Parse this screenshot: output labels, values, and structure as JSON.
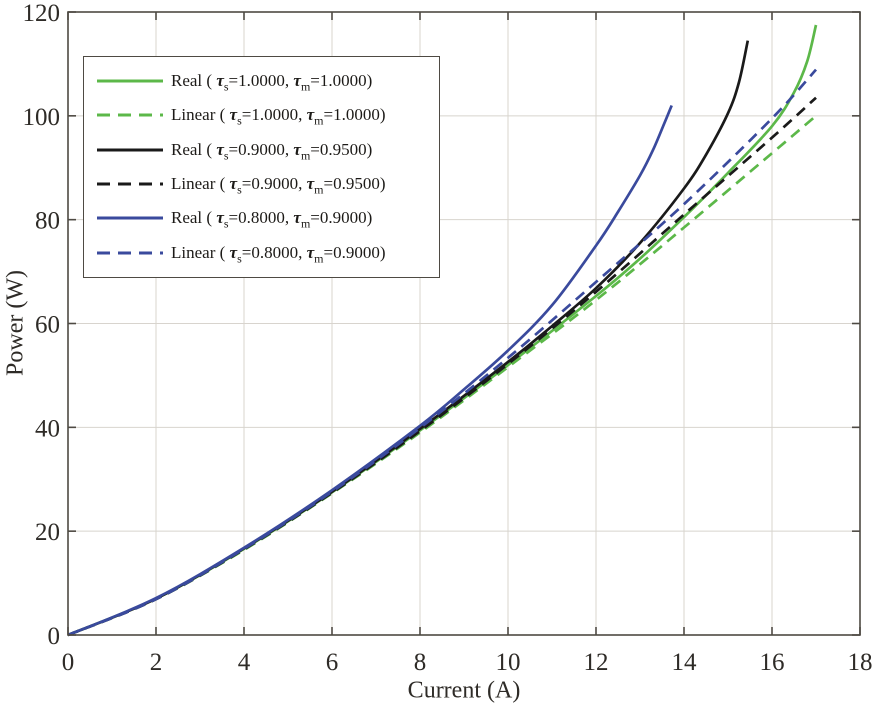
{
  "chart_data": {
    "type": "line",
    "title": "",
    "xlabel": "Current (A)",
    "ylabel": "Power (W)",
    "xlim": [
      0,
      18
    ],
    "ylim": [
      0,
      120
    ],
    "xticks": [
      0,
      2,
      4,
      6,
      8,
      10,
      12,
      14,
      16,
      18
    ],
    "yticks": [
      0,
      20,
      40,
      60,
      80,
      100,
      120
    ],
    "grid": true,
    "legend_position": "top-left",
    "colors": {
      "green": "#5cb849",
      "black": "#1a1a1a",
      "blue": "#3a4a9d"
    },
    "frame_color": "#4e4a43",
    "grid_color": "#d8d4ce",
    "tick_label_color": "#2e2b27",
    "symbols": {
      "tau": "τ",
      "sub_s": "s",
      "sub_m": "m"
    },
    "series": [
      {
        "id": "real-ts-1.0000-tm-1.0000",
        "name": "Real ( τs=1.0000, τm=1.0000)",
        "legend": {
          "prefix": "Real ( ",
          "s_val": "=1.0000, ",
          "m_val": "=1.0000)"
        },
        "color": "green",
        "style": "solid",
        "points": [
          [
            0,
            0
          ],
          [
            2,
            7
          ],
          [
            4,
            16.6
          ],
          [
            6,
            27.5
          ],
          [
            8,
            39.4
          ],
          [
            10,
            52
          ],
          [
            12,
            65.3
          ],
          [
            13,
            72.5
          ],
          [
            14,
            80.5
          ],
          [
            15,
            89
          ],
          [
            16,
            98
          ],
          [
            16.5,
            104.5
          ],
          [
            16.8,
            110.5
          ],
          [
            17,
            117.5
          ]
        ]
      },
      {
        "id": "linear-ts-1.0000-tm-1.0000",
        "name": "Linear ( τs=1.0000, τm=1.0000)",
        "legend": {
          "prefix": "Linear ( ",
          "s_val": "=1.0000, ",
          "m_val": "=1.0000)"
        },
        "color": "green",
        "style": "dashed",
        "points": [
          [
            0,
            0
          ],
          [
            2,
            6.9
          ],
          [
            4,
            16.4
          ],
          [
            6,
            27.3
          ],
          [
            8,
            39.0
          ],
          [
            10,
            51.6
          ],
          [
            12,
            64.5
          ],
          [
            14,
            78.5
          ],
          [
            16,
            92.8
          ],
          [
            17,
            100
          ]
        ]
      },
      {
        "id": "real-ts-0.9000-tm-0.9500",
        "name": "Real ( τs=0.9000, τm=0.9500)",
        "legend": {
          "prefix": "Real ( ",
          "s_val": "=0.9000, ",
          "m_val": "=0.9500)"
        },
        "color": "black",
        "style": "solid",
        "points": [
          [
            0,
            0
          ],
          [
            2,
            7
          ],
          [
            4,
            16.7
          ],
          [
            6,
            27.6
          ],
          [
            8,
            39.7
          ],
          [
            10,
            52.6
          ],
          [
            11,
            59.5
          ],
          [
            12,
            66.8
          ],
          [
            13,
            75.5
          ],
          [
            14,
            86
          ],
          [
            14.5,
            92.5
          ],
          [
            15,
            100.5
          ],
          [
            15.25,
            106.5
          ],
          [
            15.45,
            114.5
          ]
        ]
      },
      {
        "id": "linear-ts-0.9000-tm-0.9500",
        "name": "Linear ( τs=0.9000, τm=0.9500)",
        "legend": {
          "prefix": "Linear ( ",
          "s_val": "=0.9000, ",
          "m_val": "=0.9500)"
        },
        "color": "black",
        "style": "dashed",
        "points": [
          [
            0,
            0
          ],
          [
            2,
            6.9
          ],
          [
            4,
            16.5
          ],
          [
            6,
            27.4
          ],
          [
            8,
            39.3
          ],
          [
            10,
            52.2
          ],
          [
            12,
            66.1
          ],
          [
            14,
            81
          ],
          [
            16,
            95.8
          ],
          [
            17,
            103.5
          ]
        ]
      },
      {
        "id": "real-ts-0.8000-tm-0.9000",
        "name": "Real ( τs=0.8000, τm=0.9000)",
        "legend": {
          "prefix": "Real ( ",
          "s_val": "=0.8000, ",
          "m_val": "=0.9000)"
        },
        "color": "blue",
        "style": "solid",
        "points": [
          [
            0,
            0
          ],
          [
            2,
            7.1
          ],
          [
            4,
            16.8
          ],
          [
            6,
            27.9
          ],
          [
            8,
            40.3
          ],
          [
            9,
            47.3
          ],
          [
            10,
            54.8
          ],
          [
            11,
            63.5
          ],
          [
            12,
            75
          ],
          [
            12.5,
            81.5
          ],
          [
            13,
            88.5
          ],
          [
            13.3,
            93.5
          ],
          [
            13.55,
            98.5
          ],
          [
            13.72,
            102
          ]
        ]
      },
      {
        "id": "linear-ts-0.8000-tm-0.9000",
        "name": "Linear ( τs=0.8000, τm=0.9000)",
        "legend": {
          "prefix": "Linear ( ",
          "s_val": "=0.8000, ",
          "m_val": "=0.9000)"
        },
        "color": "blue",
        "style": "dashed",
        "points": [
          [
            0,
            0
          ],
          [
            2,
            6.9
          ],
          [
            4,
            16.6
          ],
          [
            6,
            27.6
          ],
          [
            8,
            39.9
          ],
          [
            10,
            53.4
          ],
          [
            12,
            68
          ],
          [
            14,
            83
          ],
          [
            16,
            99.5
          ],
          [
            17,
            108.9
          ]
        ]
      }
    ]
  }
}
